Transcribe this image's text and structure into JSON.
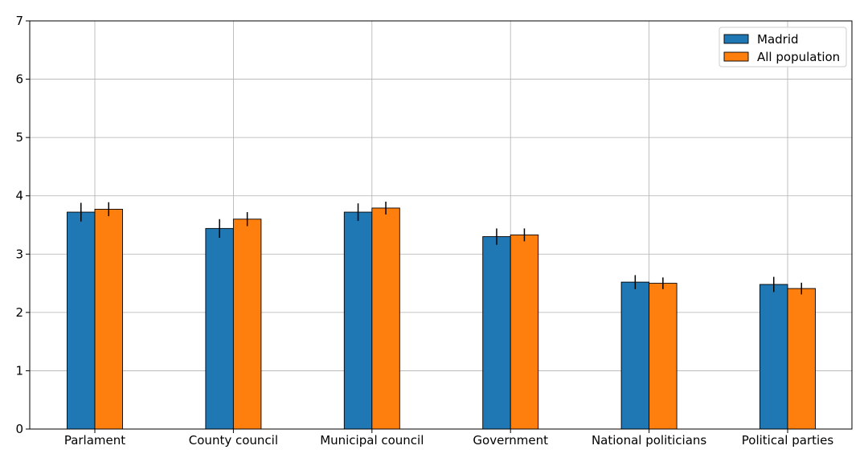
{
  "chart_data": {
    "type": "bar",
    "title": "",
    "xlabel": "",
    "ylabel": "",
    "categories": [
      "Parlament",
      "County council",
      "Municipal council",
      "Government",
      "National politicians",
      "Political parties"
    ],
    "series": [
      {
        "name": "Madrid",
        "color": "#1f77b4",
        "values": [
          3.72,
          3.44,
          3.72,
          3.3,
          2.52,
          2.48
        ],
        "errors": [
          0.16,
          0.16,
          0.15,
          0.14,
          0.12,
          0.13
        ]
      },
      {
        "name": "All population",
        "color": "#ff7f0e",
        "values": [
          3.77,
          3.6,
          3.79,
          3.33,
          2.5,
          2.41
        ],
        "errors": [
          0.12,
          0.12,
          0.11,
          0.11,
          0.1,
          0.1
        ]
      }
    ],
    "ylim": [
      0,
      7
    ],
    "yticks": [
      0,
      1,
      2,
      3,
      4,
      5,
      6,
      7
    ],
    "grid": true,
    "legend_position": "top-right"
  }
}
